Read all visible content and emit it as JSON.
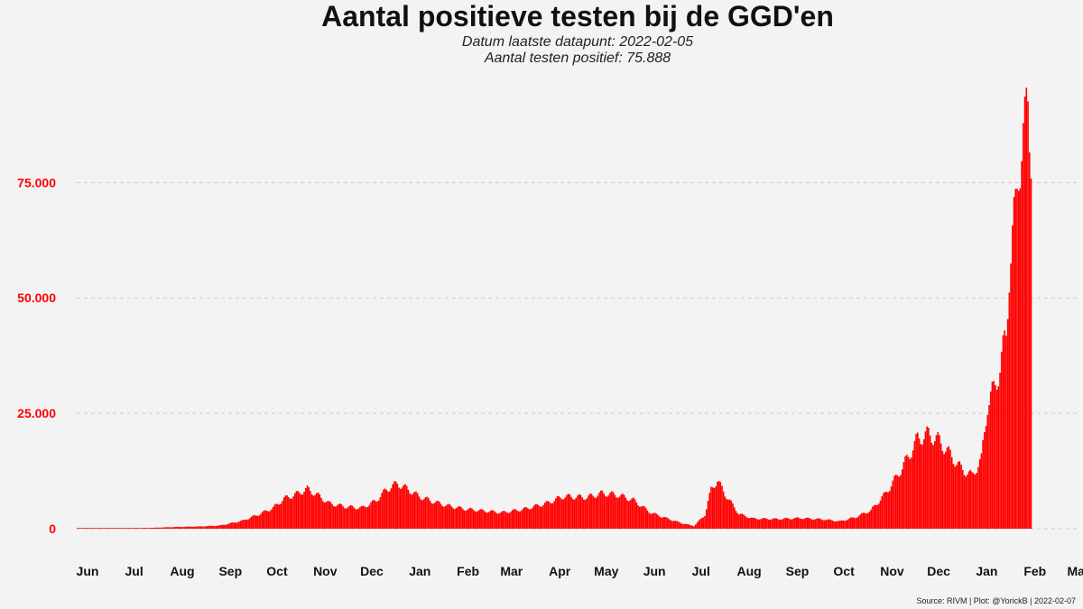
{
  "title": "Aantal positieve testen bij de GGD'en",
  "subtitle_line1": "Datum laatste datapunt: 2022-02-05",
  "subtitle_line2": "Aantal testen positief: 75.888",
  "caption": "Source: RIVM | Plot: @YorickB |  2022-02-07",
  "colors": {
    "bars": "#ff0000",
    "axis_labels": "#ff0000",
    "gridline": "#cccccc",
    "background": "#f3f3f3"
  },
  "chart_data": {
    "type": "bar",
    "y_ticks": [
      {
        "value": 0,
        "label": "0"
      },
      {
        "value": 25000,
        "label": "25.000"
      },
      {
        "value": 50000,
        "label": "50.000"
      },
      {
        "value": 75000,
        "label": "75.000"
      }
    ],
    "ylim": [
      0,
      95000
    ],
    "x_start": "2020-06-01",
    "x_ticks": [
      "Jun",
      "Jul",
      "Aug",
      "Sep",
      "Oct",
      "Nov",
      "Dec",
      "Jan",
      "Feb",
      "Mar",
      "Apr",
      "May",
      "Jun",
      "Jul",
      "Aug",
      "Sep",
      "Oct",
      "Nov",
      "Dec",
      "Jan",
      "Feb",
      "Mar"
    ],
    "anchors": [
      [
        "2020-06-01",
        150
      ],
      [
        "2020-07-01",
        100
      ],
      [
        "2020-07-20",
        200
      ],
      [
        "2020-08-01",
        350
      ],
      [
        "2020-08-20",
        500
      ],
      [
        "2020-09-01",
        700
      ],
      [
        "2020-09-15",
        1700
      ],
      [
        "2020-09-25",
        3000
      ],
      [
        "2020-10-05",
        4500
      ],
      [
        "2020-10-12",
        6500
      ],
      [
        "2020-10-20",
        7500
      ],
      [
        "2020-10-27",
        8600
      ],
      [
        "2020-11-03",
        7200
      ],
      [
        "2020-11-10",
        5500
      ],
      [
        "2020-11-20",
        4800
      ],
      [
        "2020-12-01",
        4500
      ],
      [
        "2020-12-10",
        6000
      ],
      [
        "2020-12-17",
        8500
      ],
      [
        "2020-12-24",
        9800
      ],
      [
        "2020-12-31",
        8500
      ],
      [
        "2021-01-07",
        7000
      ],
      [
        "2021-01-15",
        6000
      ],
      [
        "2021-01-25",
        5000
      ],
      [
        "2021-02-05",
        4300
      ],
      [
        "2021-02-20",
        3800
      ],
      [
        "2021-03-01",
        3500
      ],
      [
        "2021-03-15",
        4200
      ],
      [
        "2021-03-30",
        5500
      ],
      [
        "2021-04-10",
        7000
      ],
      [
        "2021-04-25",
        6800
      ],
      [
        "2021-05-05",
        7700
      ],
      [
        "2021-05-15",
        7300
      ],
      [
        "2021-05-25",
        6200
      ],
      [
        "2021-06-05",
        3500
      ],
      [
        "2021-06-15",
        2300
      ],
      [
        "2021-06-25",
        1200
      ],
      [
        "2021-07-03",
        600
      ],
      [
        "2021-07-10",
        3000
      ],
      [
        "2021-07-14",
        8500
      ],
      [
        "2021-07-18",
        10500
      ],
      [
        "2021-07-23",
        7500
      ],
      [
        "2021-08-01",
        3200
      ],
      [
        "2021-08-10",
        2200
      ],
      [
        "2021-08-25",
        2100
      ],
      [
        "2021-09-10",
        2300
      ],
      [
        "2021-09-25",
        2000
      ],
      [
        "2021-10-05",
        1600
      ],
      [
        "2021-10-15",
        2500
      ],
      [
        "2021-10-25",
        4000
      ],
      [
        "2021-11-03",
        7500
      ],
      [
        "2021-11-10",
        11000
      ],
      [
        "2021-11-17",
        15000
      ],
      [
        "2021-11-24",
        19500
      ],
      [
        "2021-12-01",
        20500
      ],
      [
        "2021-12-08",
        19000
      ],
      [
        "2021-12-15",
        16000
      ],
      [
        "2021-12-22",
        13000
      ],
      [
        "2021-12-29",
        11500
      ],
      [
        "2022-01-04",
        15000
      ],
      [
        "2022-01-08",
        27000
      ],
      [
        "2022-01-12",
        30000
      ],
      [
        "2022-01-16",
        35000
      ],
      [
        "2022-01-20",
        42000
      ],
      [
        "2022-01-22",
        56000
      ],
      [
        "2022-01-24",
        63000
      ],
      [
        "2022-01-26",
        69000
      ],
      [
        "2022-01-28",
        79000
      ],
      [
        "2022-02-01",
        86000
      ],
      [
        "2022-02-03",
        93000
      ],
      [
        "2022-02-04",
        88000
      ],
      [
        "2022-02-05",
        75888
      ]
    ]
  }
}
